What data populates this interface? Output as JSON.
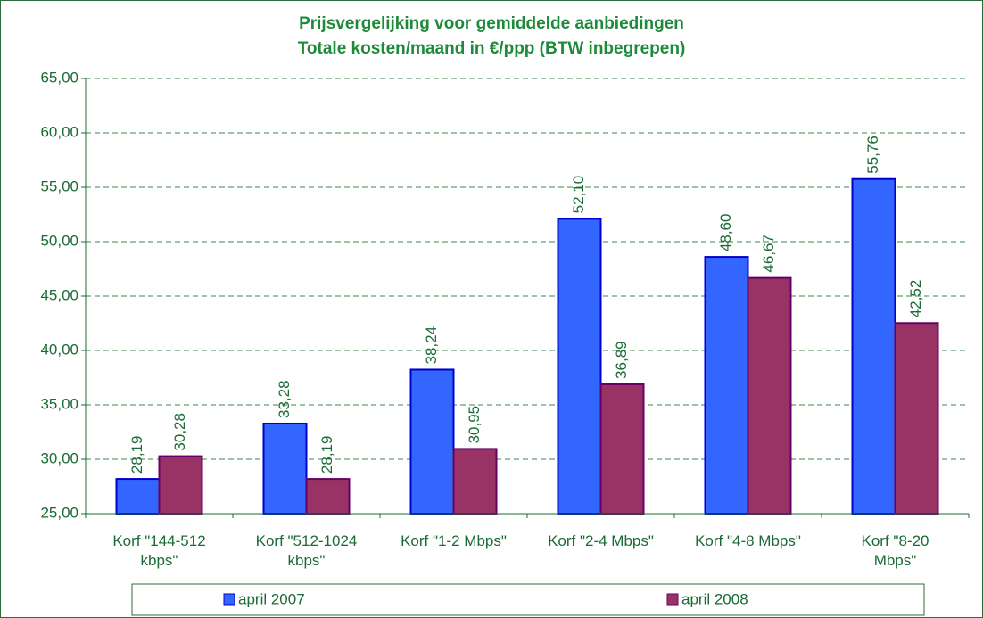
{
  "chart_data": {
    "type": "bar",
    "title": "Prijsvergelijking voor gemiddelde aanbiedingen\nTotale kosten/maand in €/ppp (BTW inbegrepen)",
    "categories": [
      "Korf \"144-512\nkbps\"",
      "Korf \"512-1024\nkbps\"",
      "Korf \"1-2 Mbps\"",
      "Korf \"2-4 Mbps\"",
      "Korf \"4-8 Mbps\"",
      "Korf \"8-20\nMbps\""
    ],
    "series": [
      {
        "name": "april 2007",
        "color": "#3366ff",
        "values": [
          28.19,
          33.28,
          38.24,
          52.1,
          48.6,
          55.76
        ],
        "value_labels": [
          "28,19",
          "33,28",
          "38,24",
          "52,10",
          "48,60",
          "55,76"
        ]
      },
      {
        "name": "april 2008",
        "color": "#993366",
        "values": [
          30.28,
          28.19,
          30.95,
          36.89,
          46.67,
          42.52
        ],
        "value_labels": [
          "30,28",
          "28,19",
          "30,95",
          "36,89",
          "46,67",
          "42,52"
        ]
      }
    ],
    "ylim": [
      25,
      65
    ],
    "yticks": [
      {
        "value": 25,
        "label": "25,00"
      },
      {
        "value": 30,
        "label": "30,00"
      },
      {
        "value": 35,
        "label": "35,00"
      },
      {
        "value": 40,
        "label": "40,00"
      },
      {
        "value": 45,
        "label": "45,00"
      },
      {
        "value": 50,
        "label": "50,00"
      },
      {
        "value": 55,
        "label": "55,00"
      },
      {
        "value": 60,
        "label": "60,00"
      },
      {
        "value": 65,
        "label": "65,00"
      }
    ],
    "grid": true,
    "legend": "bottom"
  }
}
